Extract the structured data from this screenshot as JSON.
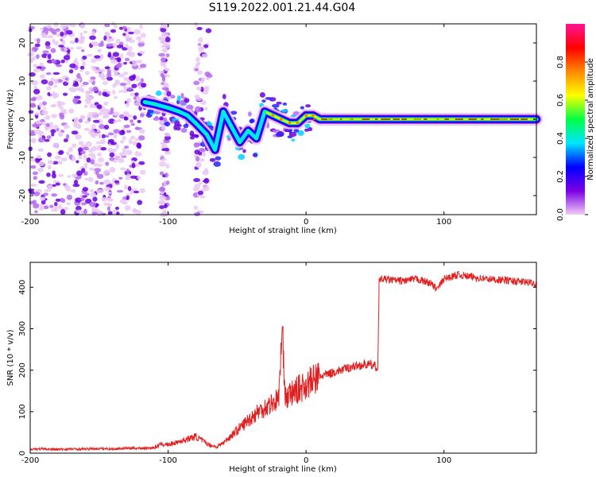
{
  "figure": {
    "title": "S119.2022.001.21.44.G04"
  },
  "chart_data": [
    {
      "type": "heatmap",
      "xlabel": "Height of straight line (km)",
      "ylabel": "Frequency (Hz)",
      "xlim": [
        -200,
        167
      ],
      "ylim": [
        -25,
        25
      ],
      "x_ticks": [
        "-200",
        "-100",
        "0",
        "100"
      ],
      "y_ticks": [
        "-20",
        "-10",
        "0",
        "10",
        "20"
      ],
      "colorbar": {
        "label": "Normalized spectral amplitude",
        "range": [
          0,
          1
        ],
        "ticks": [
          "0.0",
          "0.2",
          "0.4",
          "0.6",
          "0.8"
        ],
        "colors": [
          "#f2ccf5",
          "#7a00e6",
          "#0000ff",
          "#00e6ff",
          "#00ff44",
          "#ffff00",
          "#ff8800",
          "#ff0000",
          "#ff1493"
        ]
      },
      "ridge": [
        {
          "x": -117,
          "y": 4.5
        },
        {
          "x": -110,
          "y": 4
        },
        {
          "x": -100,
          "y": 3
        },
        {
          "x": -92,
          "y": 2
        },
        {
          "x": -86,
          "y": 1
        },
        {
          "x": -80,
          "y": -1
        },
        {
          "x": -72,
          "y": -4
        },
        {
          "x": -66,
          "y": -8
        },
        {
          "x": -60,
          "y": 2
        },
        {
          "x": -54,
          "y": -2
        },
        {
          "x": -48,
          "y": -6
        },
        {
          "x": -42,
          "y": -3
        },
        {
          "x": -36,
          "y": -5
        },
        {
          "x": -30,
          "y": 2
        },
        {
          "x": -24,
          "y": 1
        },
        {
          "x": -18,
          "y": 0
        },
        {
          "x": -12,
          "y": -1
        },
        {
          "x": -6,
          "y": -1
        },
        {
          "x": 0,
          "y": 1
        },
        {
          "x": 5,
          "y": 1
        },
        {
          "x": 10,
          "y": 0
        },
        {
          "x": 30,
          "y": 0
        },
        {
          "x": 60,
          "y": 0
        },
        {
          "x": 100,
          "y": 0
        },
        {
          "x": 167,
          "y": 0
        }
      ],
      "noise_region_x": [
        -200,
        -110
      ]
    },
    {
      "type": "line",
      "xlabel": "Height of straight line (km)",
      "ylabel": "SNR (10 * v/v)",
      "xlim": [
        -200,
        167
      ],
      "ylim": [
        0,
        460
      ],
      "x_ticks": [
        "-200",
        "-100",
        "0",
        "100"
      ],
      "y_ticks": [
        "0",
        "100",
        "200",
        "300",
        "400"
      ],
      "color": "#e02020",
      "series": [
        {
          "x": [
            -200,
            -190,
            -180,
            -170,
            -160,
            -150,
            -140,
            -130,
            -120,
            -110,
            -105,
            -100,
            -95,
            -90,
            -85,
            -80,
            -75,
            -70,
            -65,
            -60,
            -55,
            -50,
            -45,
            -40,
            -35,
            -30,
            -25,
            -20,
            -17,
            -15,
            -10,
            -5,
            0,
            5,
            10,
            15,
            20,
            25,
            30,
            35,
            40,
            45,
            50,
            52,
            53,
            55,
            60,
            70,
            80,
            90,
            95,
            100,
            110,
            120,
            130,
            140,
            150,
            160,
            167
          ],
          "y": [
            10,
            10,
            9,
            10,
            10,
            11,
            10,
            12,
            12,
            13,
            22,
            20,
            25,
            30,
            35,
            40,
            30,
            20,
            15,
            25,
            40,
            55,
            70,
            85,
            100,
            110,
            120,
            130,
            305,
            130,
            145,
            155,
            165,
            175,
            185,
            190,
            195,
            200,
            205,
            210,
            212,
            214,
            210,
            200,
            415,
            420,
            418,
            415,
            420,
            410,
            395,
            420,
            430,
            425,
            420,
            418,
            415,
            412,
            408
          ]
        }
      ]
    }
  ]
}
